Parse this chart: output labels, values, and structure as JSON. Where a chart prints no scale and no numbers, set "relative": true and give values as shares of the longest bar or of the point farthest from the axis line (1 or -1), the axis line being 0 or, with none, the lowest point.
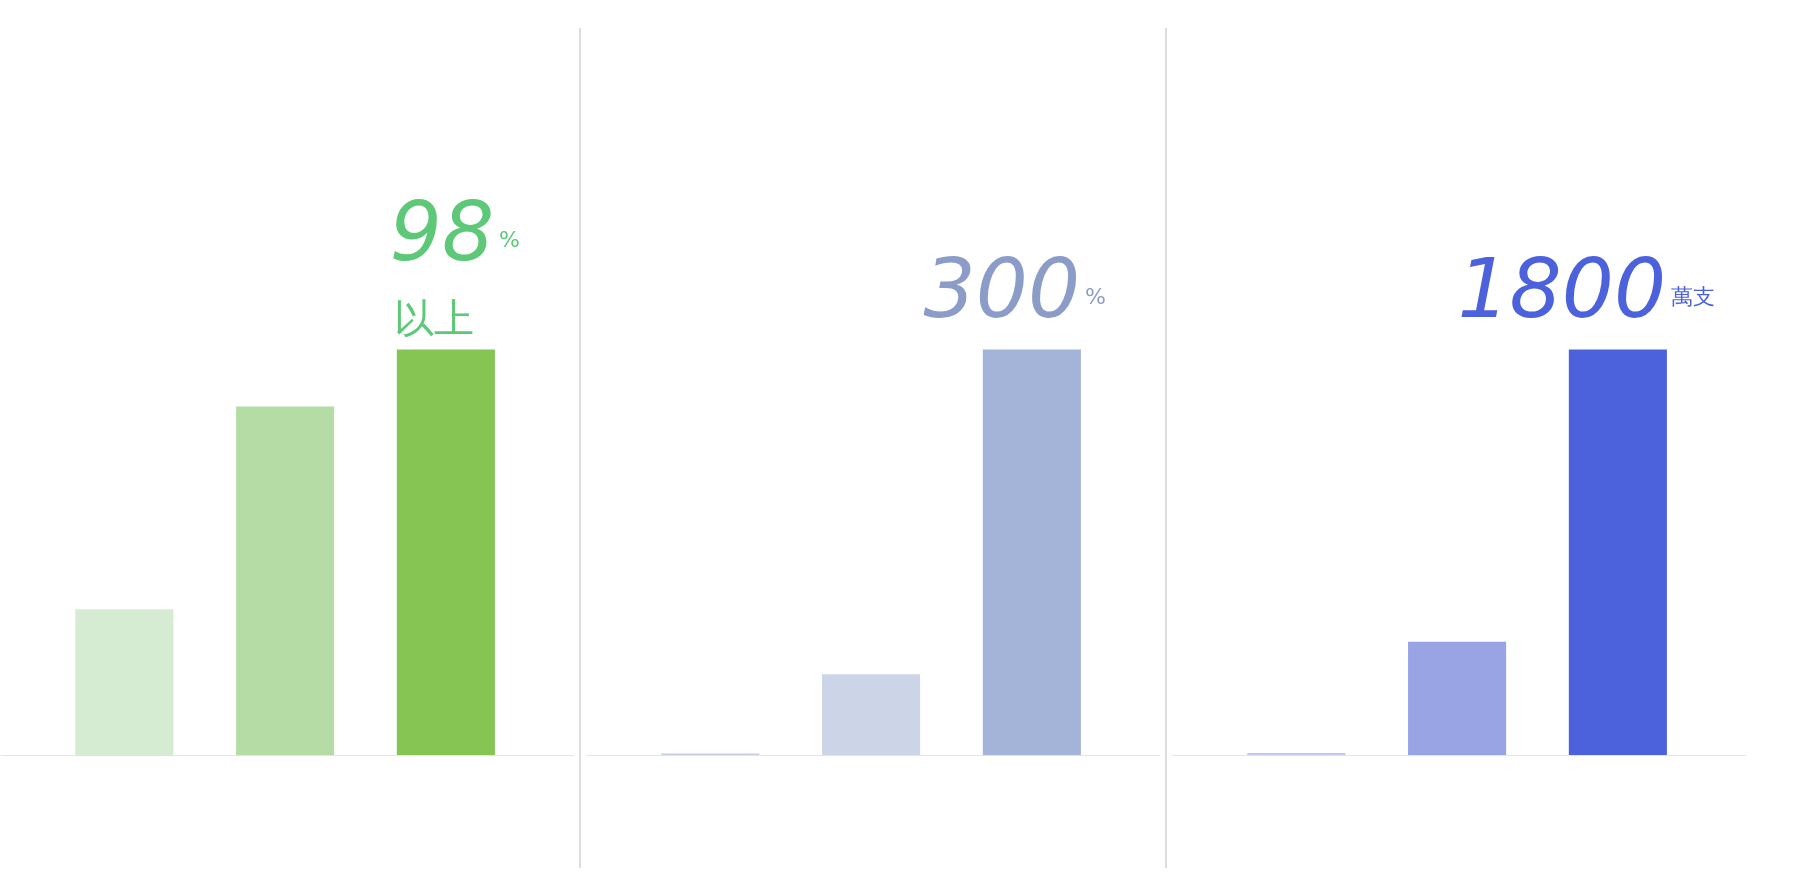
{
  "chart_data": [
    {
      "type": "bar",
      "categories": [
        null,
        null,
        null
      ],
      "values": [
        0.36,
        0.86,
        1
      ],
      "colors": [
        "#d6ecd2",
        "#b4dca4",
        "#86c454"
      ],
      "relative": true,
      "grid": false,
      "annotations": [
        "98",
        "%",
        "以上"
      ]
    },
    {
      "type": "bar",
      "categories": [
        null,
        null,
        null
      ],
      "values": [
        0.005,
        0.2,
        1
      ],
      "colors": [
        "#c8d0e8",
        "#ccd4e8",
        "#a4b4d8"
      ],
      "relative": true,
      "grid": false,
      "annotations": [
        "300",
        "%"
      ]
    },
    {
      "type": "bar",
      "categories": [
        null,
        null,
        null
      ],
      "values": [
        0.006,
        0.28,
        1
      ],
      "colors": [
        "#c4c8ec",
        "#98a4e4",
        "#4c62dc"
      ],
      "relative": true,
      "grid": false,
      "annotations": [
        "1800",
        "萬支"
      ]
    }
  ]
}
